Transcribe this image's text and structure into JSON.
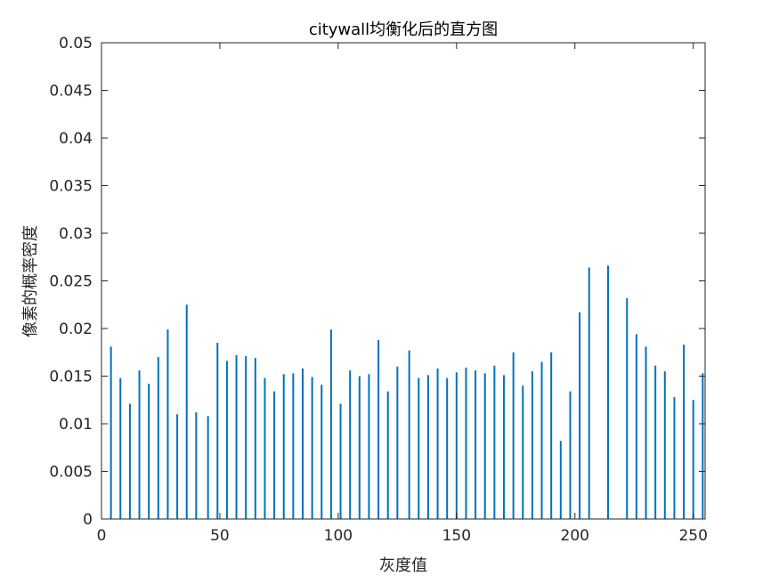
{
  "chart_data": {
    "type": "bar",
    "title": "citywall均衡化后的直方图",
    "xlabel": "灰度值",
    "ylabel": "像素的概率密度",
    "xlim": [
      0,
      255
    ],
    "ylim": [
      0,
      0.05
    ],
    "x_ticks": [
      "0",
      "50",
      "100",
      "150",
      "200",
      "250"
    ],
    "x_tick_values": [
      0,
      50,
      100,
      150,
      200,
      250
    ],
    "y_ticks": [
      "0",
      "0.005",
      "0.01",
      "0.015",
      "0.02",
      "0.025",
      "0.03",
      "0.035",
      "0.04",
      "0.045",
      "0.05"
    ],
    "y_tick_values": [
      0,
      0.005,
      0.01,
      0.015,
      0.02,
      0.025,
      0.03,
      0.035,
      0.04,
      0.045,
      0.05
    ],
    "bar_color": "#0072BD",
    "grid": false,
    "x": [
      4,
      8,
      12,
      16,
      20,
      24,
      28,
      32,
      36,
      40,
      45,
      49,
      53,
      57,
      61,
      65,
      69,
      73,
      77,
      81,
      85,
      89,
      93,
      97,
      101,
      105,
      109,
      113,
      117,
      121,
      125,
      130,
      134,
      138,
      142,
      146,
      150,
      154,
      158,
      162,
      166,
      170,
      174,
      178,
      182,
      186,
      190,
      194,
      198,
      202,
      206,
      214,
      222,
      226,
      230,
      234,
      238,
      242,
      246,
      250,
      254
    ],
    "values": [
      0.0181,
      0.0148,
      0.0121,
      0.0156,
      0.0142,
      0.017,
      0.0199,
      0.011,
      0.0225,
      0.0112,
      0.0108,
      0.0185,
      0.0166,
      0.0172,
      0.0171,
      0.0169,
      0.0148,
      0.0134,
      0.0152,
      0.0153,
      0.0158,
      0.0149,
      0.0141,
      0.0199,
      0.0121,
      0.0156,
      0.015,
      0.0152,
      0.0188,
      0.0134,
      0.016,
      0.0177,
      0.0148,
      0.0151,
      0.0158,
      0.0148,
      0.0154,
      0.0159,
      0.0156,
      0.0153,
      0.0161,
      0.0151,
      0.0175,
      0.014,
      0.0155,
      0.0165,
      0.0175,
      0.0082,
      0.0134,
      0.0217,
      0.0264,
      0.0266,
      0.0232,
      0.0194,
      0.0181,
      0.0161,
      0.0155,
      0.0128,
      0.0183,
      0.0125,
      0.0153
    ]
  }
}
